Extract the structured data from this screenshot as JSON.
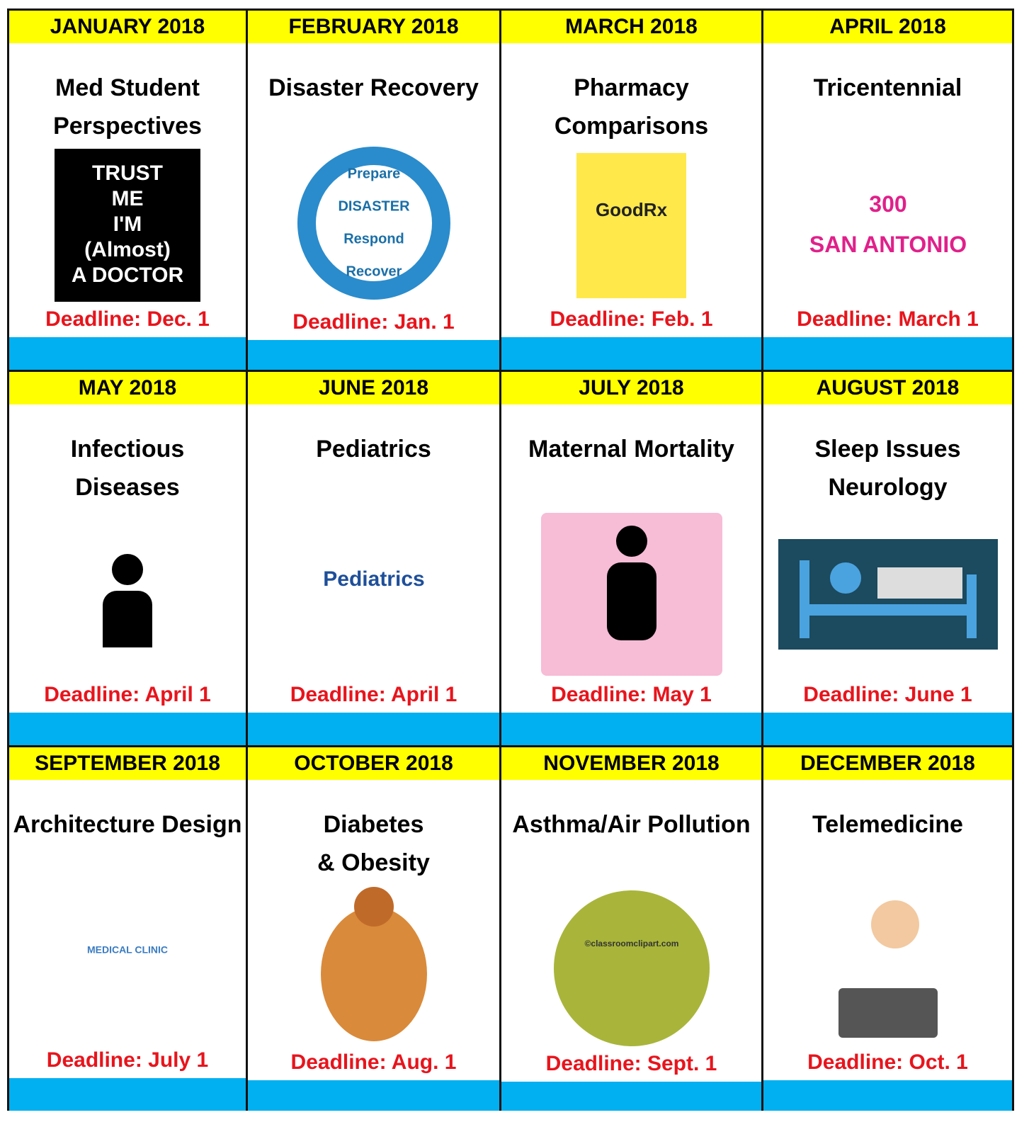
{
  "cells": [
    {
      "month": "JANUARY 2018",
      "title": [
        "Med Student",
        "Perspectives"
      ],
      "image_texts": [
        "TRUST",
        "ME",
        "I'M",
        "(Almost)",
        "A DOCTOR"
      ],
      "deadline": "Deadline: Dec. 1"
    },
    {
      "month": "FEBRUARY 2018",
      "title": [
        "Disaster Recovery"
      ],
      "image_texts": [
        "Prepare",
        "DISASTER",
        "Respond",
        "Recover"
      ],
      "deadline": "Deadline: Jan. 1"
    },
    {
      "month": "MARCH 2018",
      "title": [
        "Pharmacy",
        "Comparisons"
      ],
      "image_texts": [
        "GoodRx"
      ],
      "deadline": "Deadline: Feb. 1"
    },
    {
      "month": "APRIL 2018",
      "title": [
        "Tricentennial"
      ],
      "image_texts": [
        "300",
        "SAN ANTONIO"
      ],
      "deadline": "Deadline: March 1"
    },
    {
      "month": "MAY 2018",
      "title": [
        "Infectious",
        "Diseases"
      ],
      "image_texts": [],
      "deadline": "Deadline: April 1"
    },
    {
      "month": "JUNE 2018",
      "title": [
        "Pediatrics"
      ],
      "image_texts": [
        "Pediatrics"
      ],
      "deadline": "Deadline: April 1"
    },
    {
      "month": "JULY 2018",
      "title": [
        "Maternal Mortality"
      ],
      "image_texts": [],
      "deadline": "Deadline: May 1"
    },
    {
      "month": "AUGUST 2018",
      "title": [
        "Sleep Issues",
        "Neurology"
      ],
      "image_texts": [],
      "deadline": "Deadline: June 1"
    },
    {
      "month": "SEPTEMBER 2018",
      "title": [
        "Architecture Design"
      ],
      "image_texts": [
        "MEDICAL CLINIC"
      ],
      "deadline": "Deadline: July 1"
    },
    {
      "month": "OCTOBER 2018",
      "title": [
        "Diabetes",
        "& Obesity"
      ],
      "image_texts": [],
      "deadline": "Deadline: Aug. 1"
    },
    {
      "month": "NOVEMBER 2018",
      "title": [
        "Asthma/Air Pollution"
      ],
      "image_texts": [
        "©classroomclipart.com"
      ],
      "deadline": "Deadline: Sept. 1"
    },
    {
      "month": "DECEMBER 2018",
      "title": [
        "Telemedicine"
      ],
      "image_texts": [],
      "deadline": "Deadline: Oct. 1"
    }
  ]
}
